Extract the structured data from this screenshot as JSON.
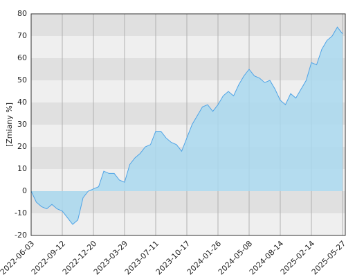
{
  "chart_data": {
    "type": "area",
    "y_label": "[Zmiany %]",
    "categories": [
      "2022-06-03",
      null,
      null,
      null,
      null,
      null,
      "2022-09-12",
      null,
      null,
      null,
      null,
      null,
      "2022-12-20",
      null,
      null,
      null,
      null,
      null,
      "2023-03-29",
      null,
      null,
      null,
      null,
      null,
      "2023-07-11",
      null,
      null,
      null,
      null,
      null,
      "2023-10-17",
      null,
      null,
      null,
      null,
      null,
      "2024-01-26",
      null,
      null,
      null,
      null,
      null,
      "2024-05-08",
      null,
      null,
      null,
      null,
      null,
      "2024-08-14",
      null,
      null,
      null,
      null,
      null,
      "2025-02-14",
      null,
      null,
      null,
      null,
      null,
      "2025-05-27"
    ],
    "values": [
      0,
      -5,
      -7,
      -8,
      -6,
      -8,
      -9,
      -12,
      -15,
      -13,
      -3,
      0,
      1,
      2,
      9,
      8,
      8,
      5,
      4,
      12,
      15,
      17,
      20,
      21,
      27,
      27,
      24,
      22,
      21,
      18,
      24,
      30,
      34,
      38,
      39,
      36,
      39,
      43,
      45,
      43,
      48,
      52,
      55,
      52,
      51,
      49,
      50,
      46,
      41,
      39,
      44,
      42,
      46,
      50,
      58,
      57,
      64,
      68,
      70,
      74,
      71
    ],
    "color": "#4ea3e6",
    "fill": "#a9d8ee",
    "ylim": [
      -20,
      80
    ],
    "yticks": [
      -20,
      -10,
      0,
      10,
      20,
      30,
      40,
      50,
      60,
      70,
      80
    ],
    "band_colors": [
      "#e0e0e0",
      "#efefef"
    ],
    "grid": true
  }
}
